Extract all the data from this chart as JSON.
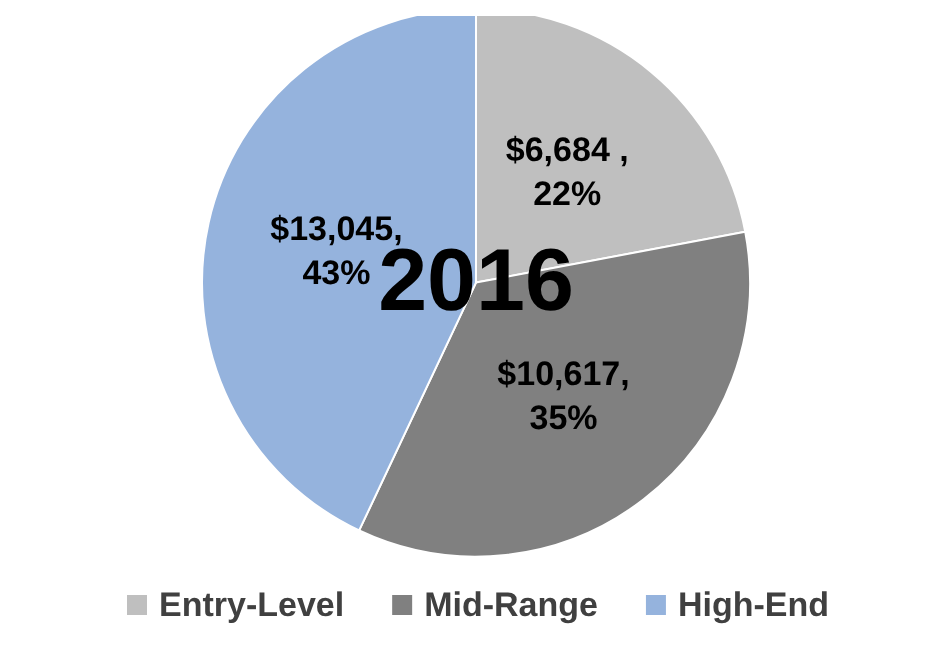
{
  "chart_data": {
    "type": "pie",
    "title": "2016",
    "categories": [
      "Entry-Level",
      "Mid-Range",
      "High-End"
    ],
    "values": [
      6684,
      10617,
      13045
    ],
    "colors": [
      "#bfbfbf",
      "#808080",
      "#95b3dd"
    ],
    "value_labels": [
      "$6,684 ,\n22%",
      "$10,617,\n35%",
      "$13,045,\n43%"
    ],
    "legend": "bottom"
  }
}
